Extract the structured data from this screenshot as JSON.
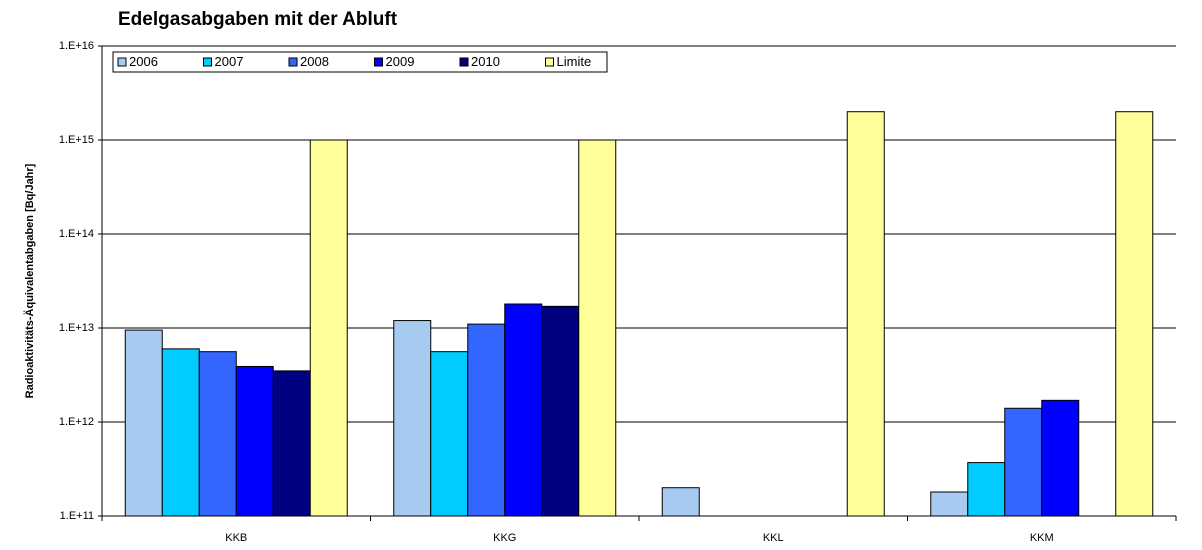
{
  "chart_data": {
    "type": "bar",
    "title": "Edelgasabgaben mit der Abluft",
    "y_label": "Radioaktivitäts-Äquivalentabgaben [Bq/Jahr]",
    "categories": [
      "KKB",
      "KKG",
      "KKL",
      "KKM"
    ],
    "series": [
      {
        "name": "2006",
        "color": "#a6caf0",
        "values": [
          9500000000000.0,
          12000000000000.0,
          200000000000.0,
          180000000000.0
        ]
      },
      {
        "name": "2007",
        "color": "#00ccff",
        "values": [
          6000000000000.0,
          5600000000000.0,
          null,
          370000000000.0
        ]
      },
      {
        "name": "2008",
        "color": "#3366ff",
        "values": [
          5600000000000.0,
          11000000000000.0,
          null,
          1400000000000.0
        ]
      },
      {
        "name": "2009",
        "color": "#0000ff",
        "values": [
          3900000000000.0,
          18000000000000.0,
          null,
          1700000000000.0
        ]
      },
      {
        "name": "2010",
        "color": "#000080",
        "values": [
          3500000000000.0,
          17000000000000.0,
          null,
          null
        ]
      },
      {
        "name": "Limite",
        "color": "#ffff99",
        "values": [
          1000000000000000.0,
          1000000000000000.0,
          2000000000000000.0,
          2000000000000000.0
        ]
      }
    ],
    "log_scale": true,
    "grid": true,
    "ylim": [
      100000000000.0,
      1e+16
    ],
    "yticks": [
      {
        "value": 100000000000.0,
        "label": "1.E+11"
      },
      {
        "value": 1000000000000.0,
        "label": "1.E+12"
      },
      {
        "value": 10000000000000.0,
        "label": "1.E+13"
      },
      {
        "value": 100000000000000.0,
        "label": "1.E+14"
      },
      {
        "value": 1000000000000000.0,
        "label": "1.E+15"
      },
      {
        "value": 1e+16,
        "label": "1.E+16"
      }
    ],
    "legend": "top-left"
  }
}
